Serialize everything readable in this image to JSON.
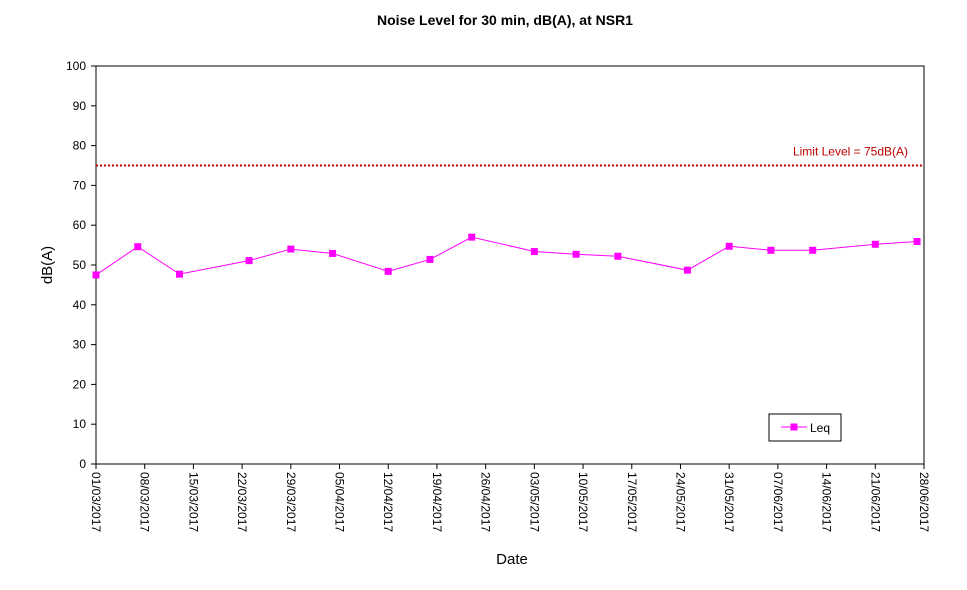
{
  "chart_data": {
    "type": "line",
    "title": "Noise Level for 30 min, dB(A), at NSR1",
    "xlabel": "Date",
    "ylabel": "dB(A)",
    "ylim": [
      0,
      100
    ],
    "yticks": [
      0,
      10,
      20,
      30,
      40,
      50,
      60,
      70,
      80,
      90,
      100
    ],
    "xlim": [
      "01/03/2017",
      "28/06/2017"
    ],
    "xticks": [
      "01/03/2017",
      "08/03/2017",
      "15/03/2017",
      "22/03/2017",
      "29/03/2017",
      "05/04/2017",
      "12/04/2017",
      "19/04/2017",
      "26/04/2017",
      "03/05/2017",
      "10/05/2017",
      "17/05/2017",
      "24/05/2017",
      "31/05/2017",
      "07/06/2017",
      "14/06/2017",
      "21/06/2017",
      "28/06/2017"
    ],
    "grid": false,
    "legend_position": "bottom-right",
    "series": [
      {
        "name": "Leq",
        "color": "#ff00ff",
        "marker": "square",
        "x": [
          "01/03/2017",
          "07/03/2017",
          "13/03/2017",
          "23/03/2017",
          "29/03/2017",
          "04/04/2017",
          "12/04/2017",
          "18/04/2017",
          "24/04/2017",
          "03/05/2017",
          "09/05/2017",
          "15/05/2017",
          "25/05/2017",
          "31/05/2017",
          "06/06/2017",
          "12/06/2017",
          "21/06/2017",
          "27/06/2017"
        ],
        "y": [
          47.5,
          54.6,
          47.7,
          51.1,
          54.0,
          52.9,
          48.4,
          51.4,
          57.0,
          53.4,
          52.7,
          52.2,
          48.7,
          54.7,
          53.7,
          53.7,
          55.2,
          55.9
        ]
      }
    ],
    "limit_line": {
      "value": 75,
      "label": "Limit Level  = 75dB(A)",
      "color": "#c00000"
    }
  }
}
